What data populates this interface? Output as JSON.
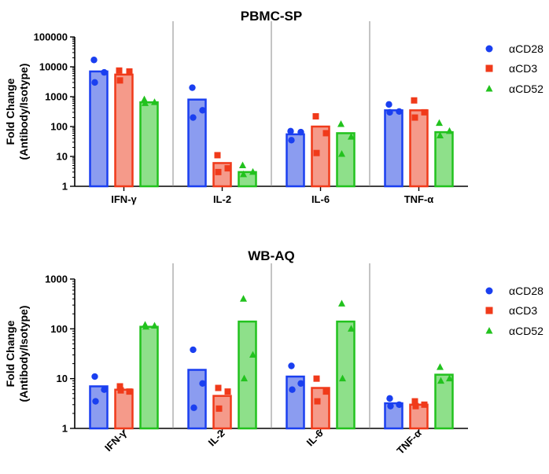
{
  "chart_data": [
    {
      "type": "bar",
      "title": "PBMC-SP",
      "ylabel": "Fold Change\n(Antibody/Isotype)",
      "yscale": "log",
      "ylim": [
        1,
        100000
      ],
      "yticks": [
        "1",
        "10",
        "100",
        "1000",
        "10000",
        "100000"
      ],
      "categories": [
        "IFN-γ",
        "IL-2",
        "IL-6",
        "TNF-α"
      ],
      "legend_position": "right",
      "series": [
        {
          "name": "αCD28",
          "color": "#1a3ff0",
          "fill": "#8b9cf0",
          "values": [
            7000,
            800,
            55,
            350
          ],
          "points": [
            [
              17000,
              6500,
              3000
            ],
            [
              2000,
              350,
              200
            ],
            [
              70,
              65,
              35
            ],
            [
              550,
              320,
              300
            ]
          ]
        },
        {
          "name": "αCD3",
          "color": "#f03a1a",
          "fill": "#f59a8a",
          "values": [
            5500,
            6,
            100,
            350
          ],
          "points": [
            [
              7500,
              7000,
              3500
            ],
            [
              11,
              4,
              3
            ],
            [
              220,
              60,
              13
            ],
            [
              750,
              300,
              200
            ]
          ]
        },
        {
          "name": "αCD52",
          "color": "#22c21e",
          "fill": "#8ee08a",
          "values": [
            650,
            3,
            60,
            65
          ],
          "points": [
            [
              800,
              650,
              600
            ],
            [
              5,
              3,
              2.5
            ],
            [
              120,
              45,
              12
            ],
            [
              130,
              70,
              50
            ]
          ]
        }
      ]
    },
    {
      "type": "bar",
      "title": "WB-AQ",
      "ylabel": "Fold Change\n(Antibody/Isotype)",
      "yscale": "log",
      "ylim": [
        1,
        1000
      ],
      "yticks": [
        "1",
        "10",
        "100",
        "1000"
      ],
      "categories": [
        "IFN-γ",
        "IL-2",
        "IL-6",
        "TNF-α"
      ],
      "legend_position": "right",
      "series": [
        {
          "name": "αCD28",
          "color": "#1a3ff0",
          "fill": "#8b9cf0",
          "values": [
            7,
            15,
            11,
            3.2
          ],
          "points": [
            [
              11,
              6,
              3.5
            ],
            [
              38,
              8,
              2.6
            ],
            [
              18,
              8,
              6
            ],
            [
              4,
              3,
              2.8
            ]
          ]
        },
        {
          "name": "αCD3",
          "color": "#f03a1a",
          "fill": "#f59a8a",
          "values": [
            6,
            4.5,
            6.5,
            3
          ],
          "points": [
            [
              7,
              5.5,
              5.8
            ],
            [
              6.5,
              5.5,
              2.5
            ],
            [
              10,
              5.5,
              3.5
            ],
            [
              3.5,
              3,
              2.8
            ]
          ]
        },
        {
          "name": "αCD52",
          "color": "#22c21e",
          "fill": "#8ee08a",
          "values": [
            110,
            140,
            140,
            12
          ],
          "points": [
            [
              120,
              115,
              110
            ],
            [
              400,
              30,
              10
            ],
            [
              320,
              100,
              10
            ],
            [
              17,
              10,
              9
            ]
          ]
        }
      ]
    }
  ]
}
